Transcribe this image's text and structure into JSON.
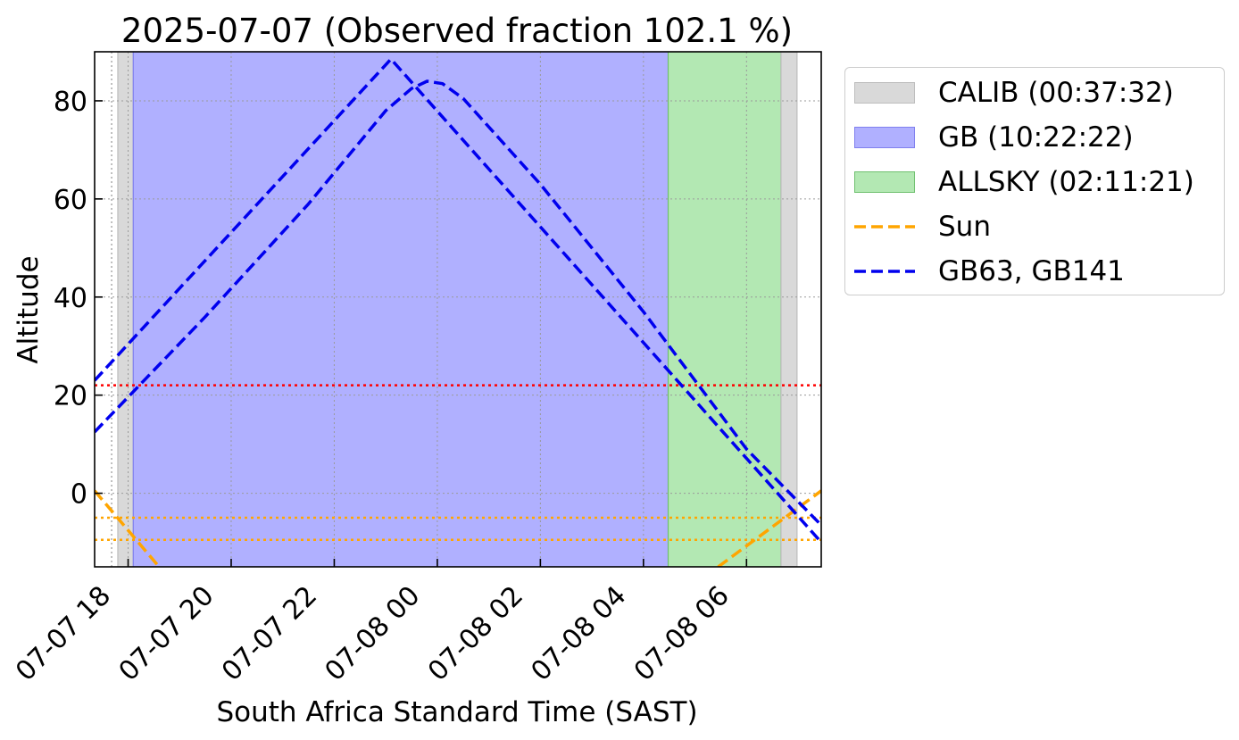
{
  "chart_data": {
    "type": "line",
    "title": "2025-07-07 (Observed fraction 102.1 %)",
    "xlabel": "South Africa Standard Time (SAST)",
    "ylabel": "Altitude",
    "x_unit": "hours since 2025-07-07 00:00 SAST",
    "xlim": [
      17.35,
      31.45
    ],
    "ylim": [
      -15,
      90
    ],
    "grid": true,
    "x_ticks": [
      {
        "value": 18,
        "label": "07-07 18"
      },
      {
        "value": 20,
        "label": "07-07 20"
      },
      {
        "value": 22,
        "label": "07-07 22"
      },
      {
        "value": 24,
        "label": "07-08 00"
      },
      {
        "value": 26,
        "label": "07-08 02"
      },
      {
        "value": 28,
        "label": "07-08 04"
      },
      {
        "value": 30,
        "label": "07-08 06"
      }
    ],
    "y_ticks": [
      0,
      20,
      40,
      60,
      80
    ],
    "spans": [
      {
        "name": "CALIB (00:37:32)",
        "from": 17.8,
        "to": 18.1,
        "color": "#d9d9d9",
        "edge": "#bdbdbd"
      },
      {
        "name": "GB (10:22:22)",
        "from": 18.1,
        "to": 28.48,
        "color": "#b0b0ff",
        "edge": "#8080ee"
      },
      {
        "name": "ALLSKY (02:11:21)",
        "from": 28.48,
        "to": 30.67,
        "color": "#b3e8b3",
        "edge": "#70c070"
      },
      {
        "name": "",
        "from": 30.67,
        "to": 30.98,
        "color": "#d9d9d9",
        "edge": "#bdbdbd"
      }
    ],
    "hlines": [
      {
        "y": 22,
        "color": "#ff0000"
      },
      {
        "y": -5,
        "color": "#ffa500"
      },
      {
        "y": -9.5,
        "color": "#ffa500"
      }
    ],
    "vlines": [
      {
        "x": 17.68,
        "color": "#aaaaaa"
      }
    ],
    "series": [
      {
        "name": "Sun",
        "color": "#ffa500",
        "segments": [
          {
            "x": [
              17.35,
              18.6
            ],
            "y": [
              0.5,
              -15
            ]
          },
          {
            "x": [
              29.45,
              31.45
            ],
            "y": [
              -15,
              0.5
            ]
          }
        ]
      },
      {
        "name": "GB63, GB141",
        "color": "#0000ee",
        "segments": [
          {
            "x": [
              17.35,
              23.1,
              31.45
            ],
            "y": [
              23,
              88.5,
              -10
            ]
          },
          {
            "x": [
              17.35,
              19.5,
              21.5,
              23.0,
              23.5,
              23.8,
              24.1,
              24.5,
              26.0,
              28.0,
              30.0,
              31.45
            ],
            "y": [
              12.5,
              36,
              59,
              78,
              82.5,
              84,
              83.5,
              80.5,
              63,
              37,
              9,
              -6.5
            ]
          }
        ]
      }
    ]
  },
  "legend": {
    "items": [
      {
        "label": "CALIB (00:37:32)",
        "kind": "patch",
        "fill": "#d9d9d9",
        "edge": "#bdbdbd"
      },
      {
        "label": "GB (10:22:22)",
        "kind": "patch",
        "fill": "#b0b0ff",
        "edge": "#8080ee"
      },
      {
        "label": "ALLSKY (02:11:21)",
        "kind": "patch",
        "fill": "#b3e8b3",
        "edge": "#70c070"
      },
      {
        "label": "Sun",
        "kind": "line",
        "color": "#ffa500"
      },
      {
        "label": "GB63, GB141",
        "kind": "line",
        "color": "#0000ee"
      }
    ]
  }
}
